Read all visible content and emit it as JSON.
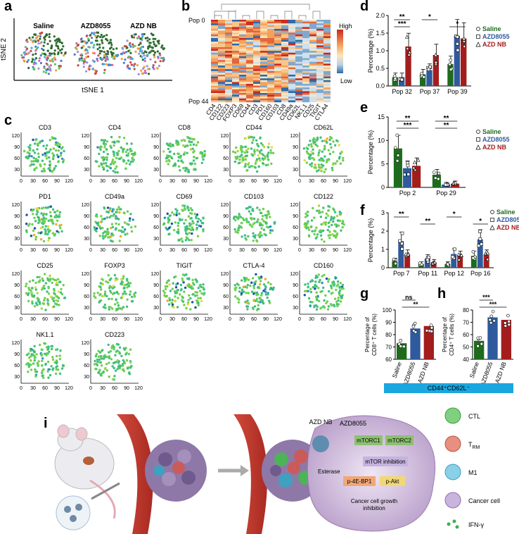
{
  "panel_labels": {
    "a": "a",
    "b": "b",
    "c": "c",
    "d": "d",
    "e": "e",
    "f": "f",
    "g": "g",
    "h": "h",
    "i": "i"
  },
  "panel_a": {
    "groups": [
      "Saline",
      "AZD8055",
      "AZD NB"
    ],
    "xlabel": "tSNE 1",
    "ylabel": "tSNE 2"
  },
  "panel_b": {
    "row_top": "Pop 0",
    "row_bottom": "Pop 44",
    "legend_high": "High",
    "legend_low": "Low",
    "markers": [
      "CD4",
      "CD122",
      "CD223",
      "FOXP3",
      "CD69",
      "CD44",
      "CD3",
      "PD1",
      "CD160",
      "CD103",
      "CD8",
      "CD49a",
      "CD62L",
      "NK1.1",
      "CD25",
      "TIGIT",
      "CTLA4"
    ]
  },
  "panel_c": {
    "row1": [
      "CD3",
      "CD4",
      "CD8",
      "CD44",
      "CD62L"
    ],
    "row2": [
      "PD1",
      "CD49a",
      "CD69",
      "CD103",
      "CD122"
    ],
    "row3": [
      "CD25",
      "FOXP3",
      "TIGIT",
      "CTLA-4",
      "CD160"
    ],
    "row4": [
      "NK1.1",
      "CD223"
    ],
    "xticks": [
      "0",
      "30",
      "60",
      "90",
      "120"
    ],
    "yticks": [
      "120",
      "90",
      "60",
      "30"
    ]
  },
  "chart_data": [
    {
      "type": "bar",
      "panel": "d",
      "categories": [
        "Pop 32",
        "Pop 37",
        "Pop 39"
      ],
      "series": [
        {
          "name": "Saline",
          "values": [
            0.25,
            0.33,
            0.62
          ]
        },
        {
          "name": "AZD8055",
          "values": [
            0.25,
            0.45,
            1.42
          ]
        },
        {
          "name": "AZD NB",
          "values": [
            1.12,
            0.88,
            1.35
          ]
        }
      ],
      "ylabel": "Percentage (%)",
      "ylim": [
        0,
        2.0
      ],
      "yticks": [
        "0.0",
        "0.5",
        "1.0",
        "1.5",
        "2.0"
      ],
      "significance": [
        "**",
        "***",
        "*",
        "*"
      ]
    },
    {
      "type": "bar",
      "panel": "e",
      "categories": [
        "Pop 2",
        "Pop 29"
      ],
      "series": [
        {
          "name": "Saline",
          "values": [
            8.3,
            2.7
          ]
        },
        {
          "name": "AZD8055",
          "values": [
            4.1,
            0.6
          ]
        },
        {
          "name": "AZD NB",
          "values": [
            4.6,
            0.8
          ]
        }
      ],
      "ylabel": "Percentage (%)",
      "ylim": [
        0,
        15
      ],
      "yticks": [
        "0",
        "5",
        "10",
        "15"
      ],
      "significance": [
        "**",
        "***",
        "**",
        "**"
      ]
    },
    {
      "type": "bar",
      "panel": "f",
      "categories": [
        "Pop 7",
        "Pop 11",
        "Pop 12",
        "Pop 16"
      ],
      "series": [
        {
          "name": "Saline",
          "values": [
            0.35,
            0.2,
            0.2,
            0.65
          ]
        },
        {
          "name": "AZD8055",
          "values": [
            1.45,
            0.5,
            0.75,
            1.55
          ]
        },
        {
          "name": "AZD NB",
          "values": [
            0.7,
            0.3,
            0.65,
            0.7
          ]
        }
      ],
      "ylabel": "Percentage (%)",
      "ylim": [
        0,
        3
      ],
      "yticks": [
        "0",
        "1",
        "2",
        "3"
      ],
      "significance": [
        "**",
        "**",
        "*",
        "*"
      ]
    },
    {
      "type": "bar",
      "panel": "g",
      "categories": [
        "Saline",
        "AZD8055",
        "AZD NB"
      ],
      "values": [
        73,
        85,
        87
      ],
      "ylabel": "Percentage of CD8⁺ T cells (%)",
      "ylim": [
        60,
        100
      ],
      "yticks": [
        "60",
        "70",
        "80",
        "90",
        "100"
      ],
      "significance": [
        "ns",
        "**"
      ]
    },
    {
      "type": "bar",
      "panel": "h",
      "categories": [
        "Saline",
        "AZD8055",
        "AZD NB"
      ],
      "values": [
        55,
        74,
        72
      ],
      "ylabel": "Percentage of CD4⁺ T cells (%)",
      "ylim": [
        40,
        80
      ],
      "yticks": [
        "40",
        "50",
        "60",
        "70",
        "80"
      ],
      "significance": [
        "***",
        "***"
      ]
    }
  ],
  "legend": {
    "saline": "Saline",
    "azd8055": "AZD8055",
    "azdnb": "AZD NB"
  },
  "colors": {
    "saline": "#1e6b1e",
    "azd8055": "#2f5a9e",
    "azdnb": "#a31d1d",
    "banner": "#1aa7e0"
  },
  "banner_text": "CD44⁺CD62L⁻",
  "panel_i": {
    "azd_nb": "AZD NB",
    "azd8055": "AZD8055",
    "mtorc1": "mTORC1",
    "mtorc2": "mTORC2",
    "mtor_inhibition": "mTOR inhibition",
    "esterase": "Esterase",
    "p4ebp1": "p-4E-BP1",
    "pakt": "p-Akt",
    "growth_inhibition": "Cancer cell growth inhibition",
    "legend_ctl": "CTL",
    "legend_trm": "T",
    "legend_trm_sub": "RM",
    "legend_m1": "M1",
    "legend_cancer": "Cancer cell",
    "legend_ifn": "IFN-γ"
  }
}
